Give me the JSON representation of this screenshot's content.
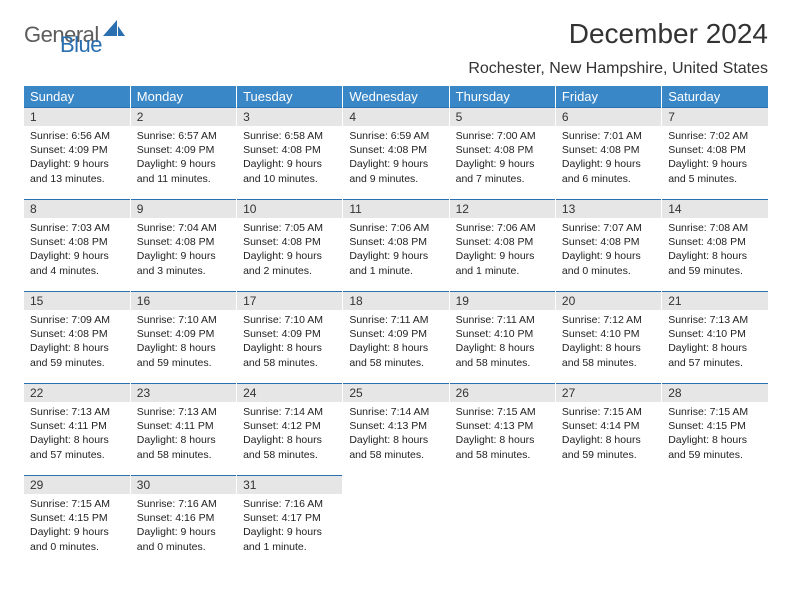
{
  "logo": {
    "general": "General",
    "blue": "Blue",
    "shape_color": "#2a6fb0",
    "text_gray": "#5c5c5c"
  },
  "title": "December 2024",
  "location": "Rochester, New Hampshire, United States",
  "colors": {
    "header_bg": "#3a87c8",
    "header_fg": "#ffffff",
    "daynum_bg": "#e6e6e6",
    "daynum_border_top": "#2a6fb0",
    "cell_sep": "#ffffff",
    "body_text": "#222222"
  },
  "weekdays": [
    "Sunday",
    "Monday",
    "Tuesday",
    "Wednesday",
    "Thursday",
    "Friday",
    "Saturday"
  ],
  "weeks": [
    [
      {
        "n": "1",
        "sr": "Sunrise: 6:56 AM",
        "ss": "Sunset: 4:09 PM",
        "d1": "Daylight: 9 hours",
        "d2": "and 13 minutes."
      },
      {
        "n": "2",
        "sr": "Sunrise: 6:57 AM",
        "ss": "Sunset: 4:09 PM",
        "d1": "Daylight: 9 hours",
        "d2": "and 11 minutes."
      },
      {
        "n": "3",
        "sr": "Sunrise: 6:58 AM",
        "ss": "Sunset: 4:08 PM",
        "d1": "Daylight: 9 hours",
        "d2": "and 10 minutes."
      },
      {
        "n": "4",
        "sr": "Sunrise: 6:59 AM",
        "ss": "Sunset: 4:08 PM",
        "d1": "Daylight: 9 hours",
        "d2": "and 9 minutes."
      },
      {
        "n": "5",
        "sr": "Sunrise: 7:00 AM",
        "ss": "Sunset: 4:08 PM",
        "d1": "Daylight: 9 hours",
        "d2": "and 7 minutes."
      },
      {
        "n": "6",
        "sr": "Sunrise: 7:01 AM",
        "ss": "Sunset: 4:08 PM",
        "d1": "Daylight: 9 hours",
        "d2": "and 6 minutes."
      },
      {
        "n": "7",
        "sr": "Sunrise: 7:02 AM",
        "ss": "Sunset: 4:08 PM",
        "d1": "Daylight: 9 hours",
        "d2": "and 5 minutes."
      }
    ],
    [
      {
        "n": "8",
        "sr": "Sunrise: 7:03 AM",
        "ss": "Sunset: 4:08 PM",
        "d1": "Daylight: 9 hours",
        "d2": "and 4 minutes."
      },
      {
        "n": "9",
        "sr": "Sunrise: 7:04 AM",
        "ss": "Sunset: 4:08 PM",
        "d1": "Daylight: 9 hours",
        "d2": "and 3 minutes."
      },
      {
        "n": "10",
        "sr": "Sunrise: 7:05 AM",
        "ss": "Sunset: 4:08 PM",
        "d1": "Daylight: 9 hours",
        "d2": "and 2 minutes."
      },
      {
        "n": "11",
        "sr": "Sunrise: 7:06 AM",
        "ss": "Sunset: 4:08 PM",
        "d1": "Daylight: 9 hours",
        "d2": "and 1 minute."
      },
      {
        "n": "12",
        "sr": "Sunrise: 7:06 AM",
        "ss": "Sunset: 4:08 PM",
        "d1": "Daylight: 9 hours",
        "d2": "and 1 minute."
      },
      {
        "n": "13",
        "sr": "Sunrise: 7:07 AM",
        "ss": "Sunset: 4:08 PM",
        "d1": "Daylight: 9 hours",
        "d2": "and 0 minutes."
      },
      {
        "n": "14",
        "sr": "Sunrise: 7:08 AM",
        "ss": "Sunset: 4:08 PM",
        "d1": "Daylight: 8 hours",
        "d2": "and 59 minutes."
      }
    ],
    [
      {
        "n": "15",
        "sr": "Sunrise: 7:09 AM",
        "ss": "Sunset: 4:08 PM",
        "d1": "Daylight: 8 hours",
        "d2": "and 59 minutes."
      },
      {
        "n": "16",
        "sr": "Sunrise: 7:10 AM",
        "ss": "Sunset: 4:09 PM",
        "d1": "Daylight: 8 hours",
        "d2": "and 59 minutes."
      },
      {
        "n": "17",
        "sr": "Sunrise: 7:10 AM",
        "ss": "Sunset: 4:09 PM",
        "d1": "Daylight: 8 hours",
        "d2": "and 58 minutes."
      },
      {
        "n": "18",
        "sr": "Sunrise: 7:11 AM",
        "ss": "Sunset: 4:09 PM",
        "d1": "Daylight: 8 hours",
        "d2": "and 58 minutes."
      },
      {
        "n": "19",
        "sr": "Sunrise: 7:11 AM",
        "ss": "Sunset: 4:10 PM",
        "d1": "Daylight: 8 hours",
        "d2": "and 58 minutes."
      },
      {
        "n": "20",
        "sr": "Sunrise: 7:12 AM",
        "ss": "Sunset: 4:10 PM",
        "d1": "Daylight: 8 hours",
        "d2": "and 58 minutes."
      },
      {
        "n": "21",
        "sr": "Sunrise: 7:13 AM",
        "ss": "Sunset: 4:10 PM",
        "d1": "Daylight: 8 hours",
        "d2": "and 57 minutes."
      }
    ],
    [
      {
        "n": "22",
        "sr": "Sunrise: 7:13 AM",
        "ss": "Sunset: 4:11 PM",
        "d1": "Daylight: 8 hours",
        "d2": "and 57 minutes."
      },
      {
        "n": "23",
        "sr": "Sunrise: 7:13 AM",
        "ss": "Sunset: 4:11 PM",
        "d1": "Daylight: 8 hours",
        "d2": "and 58 minutes."
      },
      {
        "n": "24",
        "sr": "Sunrise: 7:14 AM",
        "ss": "Sunset: 4:12 PM",
        "d1": "Daylight: 8 hours",
        "d2": "and 58 minutes."
      },
      {
        "n": "25",
        "sr": "Sunrise: 7:14 AM",
        "ss": "Sunset: 4:13 PM",
        "d1": "Daylight: 8 hours",
        "d2": "and 58 minutes."
      },
      {
        "n": "26",
        "sr": "Sunrise: 7:15 AM",
        "ss": "Sunset: 4:13 PM",
        "d1": "Daylight: 8 hours",
        "d2": "and 58 minutes."
      },
      {
        "n": "27",
        "sr": "Sunrise: 7:15 AM",
        "ss": "Sunset: 4:14 PM",
        "d1": "Daylight: 8 hours",
        "d2": "and 59 minutes."
      },
      {
        "n": "28",
        "sr": "Sunrise: 7:15 AM",
        "ss": "Sunset: 4:15 PM",
        "d1": "Daylight: 8 hours",
        "d2": "and 59 minutes."
      }
    ],
    [
      {
        "n": "29",
        "sr": "Sunrise: 7:15 AM",
        "ss": "Sunset: 4:15 PM",
        "d1": "Daylight: 9 hours",
        "d2": "and 0 minutes."
      },
      {
        "n": "30",
        "sr": "Sunrise: 7:16 AM",
        "ss": "Sunset: 4:16 PM",
        "d1": "Daylight: 9 hours",
        "d2": "and 0 minutes."
      },
      {
        "n": "31",
        "sr": "Sunrise: 7:16 AM",
        "ss": "Sunset: 4:17 PM",
        "d1": "Daylight: 9 hours",
        "d2": "and 1 minute."
      },
      null,
      null,
      null,
      null
    ]
  ]
}
